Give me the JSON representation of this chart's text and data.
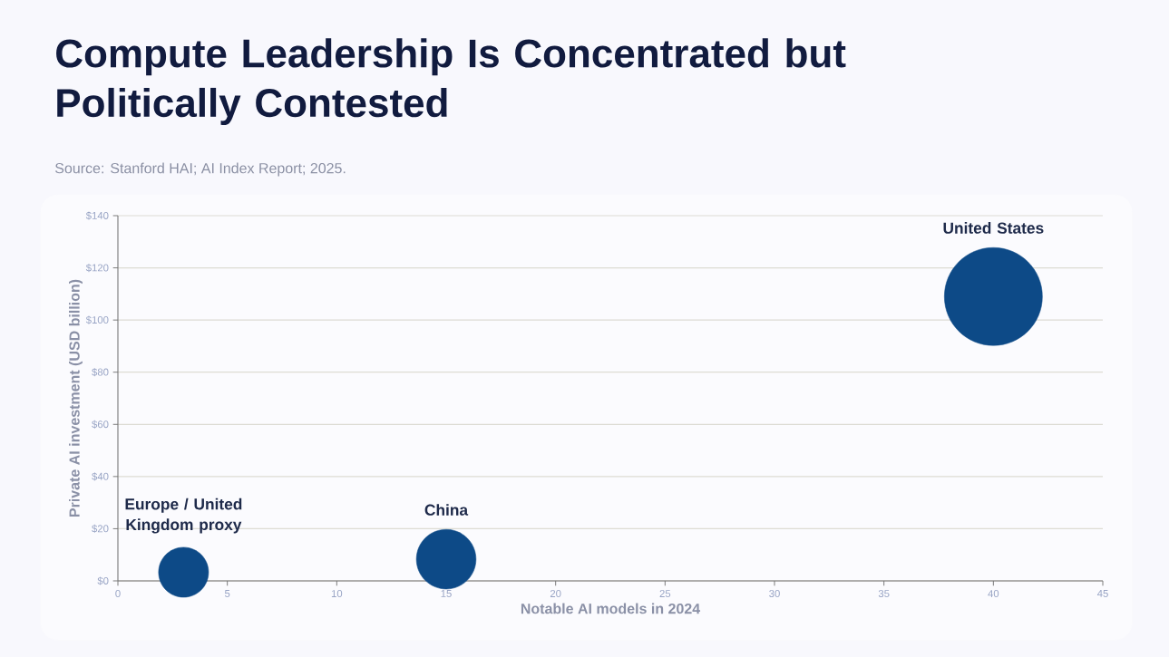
{
  "chart_data": {
    "type": "bubble",
    "title": "Compute Leadership Is Concentrated but Politically Contested",
    "annotations": [
      "Source: Stanford HAI; AI Index Report; 2025."
    ],
    "xlabel": "Notable AI models in 2024",
    "ylabel": "Private AI investment (USD billion)",
    "xlim": [
      0,
      45
    ],
    "xticks": [
      0,
      5,
      10,
      15,
      20,
      25,
      30,
      35,
      40,
      45
    ],
    "ylim": [
      0,
      140
    ],
    "yticks": [
      {
        "value": 0,
        "label": "$0"
      },
      {
        "value": 20,
        "label": "$20"
      },
      {
        "value": 40,
        "label": "$40"
      },
      {
        "value": 60,
        "label": "$60"
      },
      {
        "value": 80,
        "label": "$80"
      },
      {
        "value": 100,
        "label": "$100"
      },
      {
        "value": 120,
        "label": "$120"
      },
      {
        "value": 140,
        "label": "$140"
      }
    ],
    "grid": "y",
    "series": [
      {
        "name": "United States",
        "color": "#0d4a87",
        "x": [
          40
        ],
        "values": [
          109
        ],
        "sizes": [
          1
        ]
      },
      {
        "name": "China",
        "color": "#0d4a87",
        "x": [
          15
        ],
        "values": [
          8.3
        ],
        "sizes": [
          0.37
        ]
      },
      {
        "name": "Europe / United Kingdom proxy",
        "color": "#0d4a87",
        "x": [
          3
        ],
        "values": [
          3.3
        ],
        "sizes": [
          0.26
        ]
      }
    ]
  }
}
